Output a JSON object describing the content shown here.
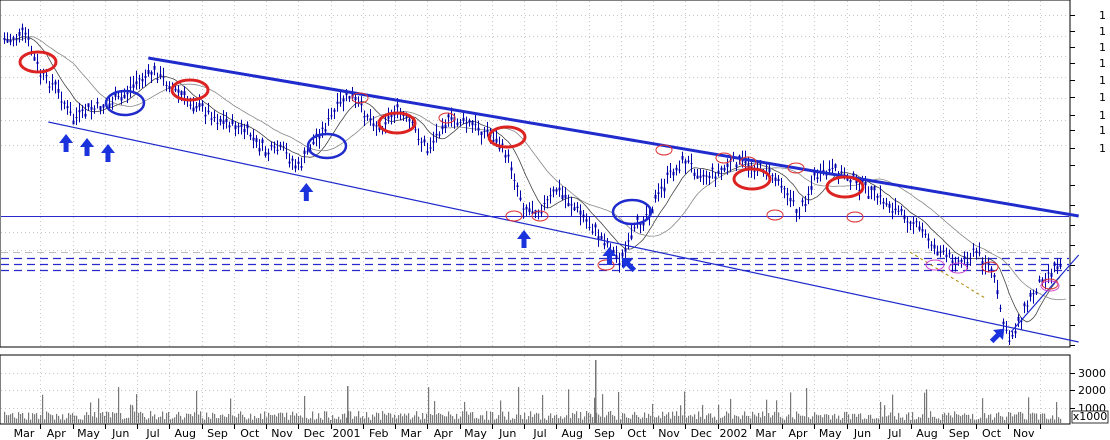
{
  "chart_data": {
    "type": "candlestick",
    "grid": true,
    "x_ticks": [
      "Mar",
      "Apr",
      "May",
      "Jun",
      "Jul",
      "Aug",
      "Sep",
      "Oct",
      "Nov",
      "Dec",
      "2001",
      "Feb",
      "Mar",
      "Apr",
      "May",
      "Jun",
      "Jul",
      "Aug",
      "Sep",
      "Oct",
      "Nov",
      "Dec",
      "2002",
      "Mar",
      "Apr",
      "May",
      "Jun",
      "Jul",
      "Aug",
      "Sep",
      "Oct",
      "Nov"
    ],
    "price_ticks_right": [
      "1",
      "1",
      "1",
      "1",
      "1",
      "1",
      "1",
      "1",
      "1"
    ],
    "volume_ticks": [
      "3000",
      "2000",
      "1000"
    ],
    "volume_unit": "x1000",
    "price_trend": [
      {
        "x": 0.0,
        "y": 40
      },
      {
        "x": 0.5,
        "y": 33
      },
      {
        "x": 1.0,
        "y": 75
      },
      {
        "x": 1.5,
        "y": 88
      },
      {
        "x": 2.0,
        "y": 120
      },
      {
        "x": 2.5,
        "y": 110
      },
      {
        "x": 3.0,
        "y": 106
      },
      {
        "x": 3.5,
        "y": 98
      },
      {
        "x": 4.0,
        "y": 80
      },
      {
        "x": 4.5,
        "y": 72
      },
      {
        "x": 5.0,
        "y": 85
      },
      {
        "x": 5.5,
        "y": 100
      },
      {
        "x": 6.0,
        "y": 108
      },
      {
        "x": 6.5,
        "y": 120
      },
      {
        "x": 7.0,
        "y": 125
      },
      {
        "x": 7.5,
        "y": 135
      },
      {
        "x": 8.0,
        "y": 152
      },
      {
        "x": 8.5,
        "y": 150
      },
      {
        "x": 9.0,
        "y": 168
      },
      {
        "x": 9.5,
        "y": 140
      },
      {
        "x": 10.0,
        "y": 118
      },
      {
        "x": 10.5,
        "y": 95
      },
      {
        "x": 11.0,
        "y": 110
      },
      {
        "x": 11.5,
        "y": 128
      },
      {
        "x": 12.0,
        "y": 110
      },
      {
        "x": 12.5,
        "y": 125
      },
      {
        "x": 13.0,
        "y": 150
      },
      {
        "x": 13.5,
        "y": 122
      },
      {
        "x": 14.0,
        "y": 120
      },
      {
        "x": 14.5,
        "y": 128
      },
      {
        "x": 15.0,
        "y": 135
      },
      {
        "x": 15.5,
        "y": 158
      },
      {
        "x": 16.0,
        "y": 208
      },
      {
        "x": 16.5,
        "y": 210
      },
      {
        "x": 17.0,
        "y": 190
      },
      {
        "x": 17.5,
        "y": 205
      },
      {
        "x": 18.0,
        "y": 225
      },
      {
        "x": 18.5,
        "y": 240
      },
      {
        "x": 19.0,
        "y": 262
      },
      {
        "x": 19.5,
        "y": 225
      },
      {
        "x": 20.0,
        "y": 205
      },
      {
        "x": 20.5,
        "y": 175
      },
      {
        "x": 21.0,
        "y": 160
      },
      {
        "x": 21.5,
        "y": 175
      },
      {
        "x": 22.0,
        "y": 172
      },
      {
        "x": 22.5,
        "y": 162
      },
      {
        "x": 23.0,
        "y": 165
      },
      {
        "x": 23.5,
        "y": 170
      },
      {
        "x": 24.0,
        "y": 182
      },
      {
        "x": 24.5,
        "y": 215
      },
      {
        "x": 25.0,
        "y": 178
      },
      {
        "x": 25.5,
        "y": 172
      },
      {
        "x": 26.0,
        "y": 175
      },
      {
        "x": 26.5,
        "y": 188
      },
      {
        "x": 27.0,
        "y": 198
      },
      {
        "x": 27.5,
        "y": 210
      },
      {
        "x": 28.0,
        "y": 220
      },
      {
        "x": 28.5,
        "y": 238
      },
      {
        "x": 29.0,
        "y": 255
      },
      {
        "x": 29.5,
        "y": 262
      },
      {
        "x": 30.0,
        "y": 252
      },
      {
        "x": 30.5,
        "y": 270
      },
      {
        "x": 31.0,
        "y": 342
      },
      {
        "x": 31.5,
        "y": 310
      },
      {
        "x": 32.0,
        "y": 280
      },
      {
        "x": 32.5,
        "y": 265
      },
      {
        "x": 33.0,
        "y": 250
      }
    ],
    "annotations": {
      "trendlines": [
        {
          "kind": "upper-channel",
          "x1": 4.35,
          "y1": 58,
          "x2": 33.2,
          "y2": 216
        },
        {
          "kind": "lower-channel",
          "x1": 1.25,
          "y1": 122,
          "x2": 33.2,
          "y2": 342
        },
        {
          "kind": "late-support",
          "x1": 31.1,
          "y1": 332,
          "x2": 33.2,
          "y2": 255
        }
      ],
      "up_arrows_x": [
        1.8,
        2.45,
        3.1,
        9.25,
        16.0,
        18.65
      ],
      "diag_arrows_x": [
        19.7,
        31.3
      ]
    }
  }
}
